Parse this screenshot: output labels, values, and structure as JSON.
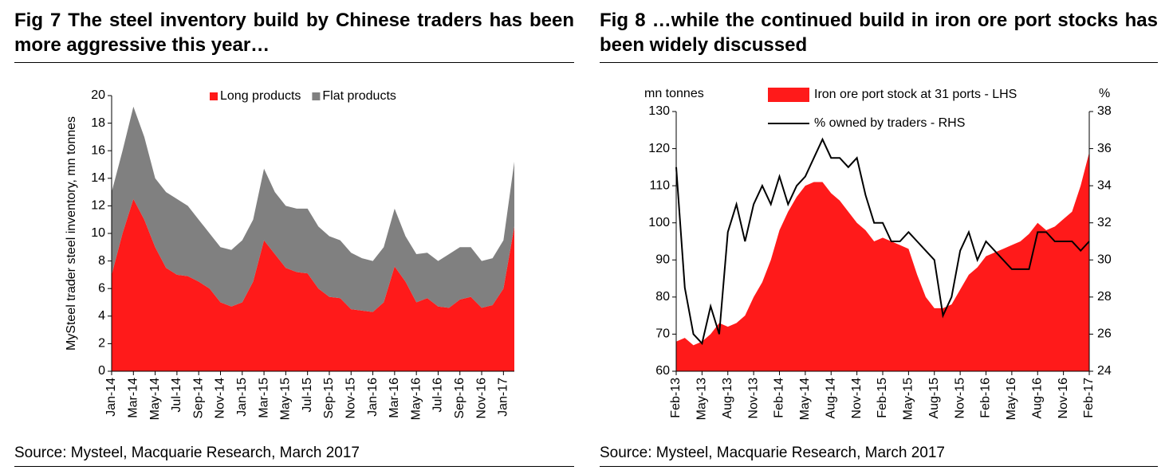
{
  "chart_data": [
    {
      "type": "area",
      "stacked": true,
      "title": "Fig 7   The steel inventory build by Chinese traders has been more aggressive this year…",
      "ylabel": "MySteel trader steel inventory, mn tonnes",
      "source": "Source: Mysteel, Macquarie Research, March 2017",
      "categories": [
        "Jan-14",
        null,
        "Mar-14",
        null,
        "May-14",
        null,
        "Jul-14",
        null,
        "Sep-14",
        null,
        "Nov-14",
        null,
        "Jan-15",
        null,
        "Mar-15",
        null,
        "May-15",
        null,
        "Jul-15",
        null,
        "Sep-15",
        null,
        "Nov-15",
        null,
        "Jan-16",
        null,
        "Mar-16",
        null,
        "May-16",
        null,
        "Jul-16",
        null,
        "Sep-16",
        null,
        "Nov-16",
        null,
        "Jan-17",
        null
      ],
      "series": [
        {
          "name": "Long products",
          "color": "#ff1a1a",
          "values": [
            7,
            10,
            12.5,
            11,
            9,
            7.5,
            7,
            6.9,
            6.5,
            6,
            5,
            4.7,
            5,
            6.5,
            9.5,
            8.5,
            7.5,
            7.2,
            7.1,
            6,
            5.4,
            5.3,
            4.5,
            4.4,
            4.3,
            5,
            7.6,
            6.5,
            5,
            5.3,
            4.7,
            4.6,
            5.2,
            5.4,
            4.6,
            4.8,
            6,
            10.5
          ]
        },
        {
          "name": "Flat products",
          "color": "#808080",
          "values": [
            6,
            6,
            6.7,
            6,
            5,
            5.5,
            5.5,
            5.1,
            4.5,
            4,
            4,
            4.1,
            4.5,
            4.5,
            5.2,
            4.5,
            4.5,
            4.6,
            4.7,
            4.5,
            4.4,
            4.2,
            4.1,
            3.8,
            3.7,
            4,
            4.2,
            3.3,
            3.5,
            3.3,
            3.3,
            3.9,
            3.8,
            3.6,
            3.4,
            3.4,
            3.5,
            4.7
          ]
        }
      ],
      "ylim": [
        0,
        20
      ],
      "yticks": [
        0,
        2,
        4,
        6,
        8,
        10,
        12,
        14,
        16,
        18,
        20
      ],
      "legend": "top"
    },
    {
      "type": "combo",
      "title": "Fig 8   …while the continued build in iron ore port stocks has been widely discussed",
      "ylabel": "mn tonnes",
      "y2label": "%",
      "source": "Source: Mysteel, Macquarie Research, March 2017",
      "categories": [
        "Feb-13",
        null,
        null,
        "May-13",
        null,
        null,
        "Aug-13",
        null,
        null,
        "Nov-13",
        null,
        null,
        "Feb-14",
        null,
        null,
        "May-14",
        null,
        null,
        "Aug-14",
        null,
        null,
        "Nov-14",
        null,
        null,
        "Feb-15",
        null,
        null,
        "May-15",
        null,
        null,
        "Aug-15",
        null,
        null,
        "Nov-15",
        null,
        null,
        "Feb-16",
        null,
        null,
        "May-16",
        null,
        null,
        "Aug-16",
        null,
        null,
        "Nov-16",
        null,
        null,
        "Feb-17"
      ],
      "series": [
        {
          "name": "Iron ore port stock at 31 ports - LHS",
          "type": "area",
          "color": "#ff1a1a",
          "values": [
            68,
            69,
            67,
            68,
            70,
            73,
            72,
            73,
            75,
            80,
            84,
            90,
            98,
            103,
            107,
            110,
            111,
            111,
            108,
            106,
            103,
            100,
            98,
            95,
            96,
            95,
            94,
            93,
            86,
            80,
            77,
            77,
            78,
            82,
            86,
            88,
            91,
            92,
            93,
            94,
            95,
            97,
            100,
            98,
            99,
            101,
            103,
            110,
            119
          ]
        },
        {
          "name": "% owned by traders - RHS",
          "type": "line",
          "axis": "y2",
          "color": "#000000",
          "values": [
            35,
            28.5,
            26,
            25.5,
            27.5,
            26,
            31.5,
            33,
            31,
            33,
            34,
            33,
            34.5,
            33,
            34,
            34.5,
            35.5,
            36.5,
            35.5,
            35.5,
            35,
            35.5,
            33.5,
            32,
            32,
            31,
            31,
            31.5,
            31,
            30.5,
            30,
            27,
            28,
            30.5,
            31.5,
            30,
            31,
            30.5,
            30,
            29.5,
            29.5,
            29.5,
            31.5,
            31.5,
            31,
            31,
            31,
            30.5,
            31
          ]
        }
      ],
      "ylim": [
        60,
        130
      ],
      "yticks": [
        60,
        70,
        80,
        90,
        100,
        110,
        120,
        130
      ],
      "y2lim": [
        24,
        38
      ],
      "y2ticks": [
        24,
        26,
        28,
        30,
        32,
        34,
        36,
        38
      ],
      "legend": "top"
    }
  ]
}
